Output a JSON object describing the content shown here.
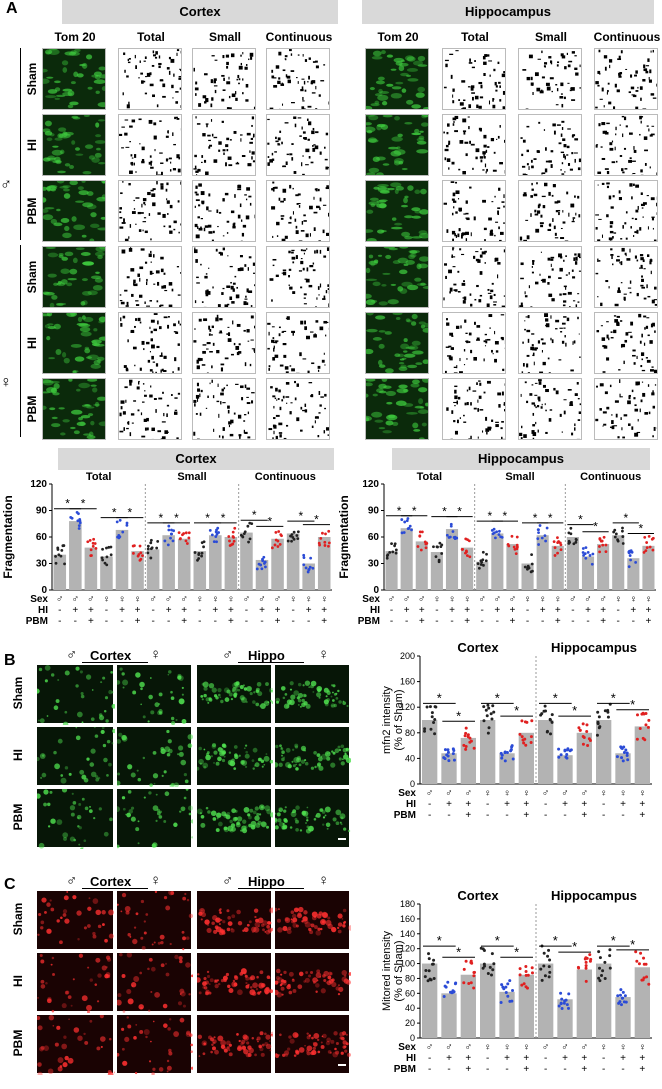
{
  "panelA": {
    "letter": "A",
    "cortex_header": "Cortex",
    "hippo_header": "Hippocampus",
    "columns": [
      "Tom 20",
      "Total",
      "Small",
      "Continuous"
    ],
    "rows": [
      "Sham",
      "HI",
      "PBM",
      "Sham",
      "HI",
      "PBM"
    ],
    "male_symbol": "♂",
    "female_symbol": "♀"
  },
  "panelA_charts": {
    "cortex_title": "Cortex",
    "hippo_title": "Hippocampus",
    "groups": [
      "Total",
      "Small",
      "Continuous"
    ],
    "ylabel": "Fragmentation",
    "yticks": [
      "0",
      "30",
      "60",
      "90",
      "120"
    ],
    "row_labels": [
      "Sex",
      "HI",
      "PBM"
    ],
    "sex_row": [
      "♂",
      "♂",
      "♂",
      "♀",
      "♀",
      "♀"
    ],
    "hi_row": [
      "-",
      "+",
      "+",
      "-",
      "+",
      "+"
    ],
    "pbm_row": [
      "-",
      "-",
      "+",
      "-",
      "-",
      "+"
    ],
    "star": "*"
  },
  "panelB": {
    "letter": "B",
    "cortex_label": "Cortex",
    "hippo_label": "Hippo",
    "rows": [
      "Sham",
      "HI",
      "PBM"
    ],
    "chart_titles": [
      "Cortex",
      "Hippocampus"
    ],
    "ylabel": "mfn2 intensity",
    "ylabel2": "(% of Sham)",
    "yticks": [
      "0",
      "40",
      "80",
      "120",
      "160",
      "200"
    ]
  },
  "panelC": {
    "letter": "C",
    "cortex_label": "Cortex",
    "hippo_label": "Hippo",
    "rows": [
      "Sham",
      "HI",
      "PBM"
    ],
    "chart_titles": [
      "Cortex",
      "Hippocampus"
    ],
    "ylabel": "Mitored intensity",
    "ylabel2": "(% of Sham)",
    "yticks": [
      "0",
      "20",
      "40",
      "60",
      "80",
      "100",
      "120",
      "140",
      "160",
      "180"
    ]
  },
  "colors": {
    "sham": "#222222",
    "hi": "#2b4bd6",
    "pbm": "#e02020",
    "bar": "#b3b3b3",
    "header": "#d9d9d9"
  },
  "chart_data": [
    {
      "type": "bar",
      "title": "Cortex",
      "ylabel": "Fragmentation",
      "ylim": [
        0,
        120
      ],
      "groups": [
        "Total",
        "Small",
        "Continuous"
      ],
      "categories": [
        "♂ Sham",
        "♂ HI",
        "♂ HI+PBM",
        "♀ Sham",
        "♀ HI",
        "♀ HI+PBM"
      ],
      "series": [
        {
          "name": "Total",
          "values": [
            40,
            78,
            48,
            38,
            68,
            44
          ]
        },
        {
          "name": "Small",
          "values": [
            46,
            62,
            58,
            44,
            62,
            60
          ]
        },
        {
          "name": "Continuous",
          "values": [
            65,
            34,
            58,
            64,
            30,
            60
          ]
        }
      ]
    },
    {
      "type": "bar",
      "title": "Hippocampus",
      "ylabel": "Fragmentation",
      "ylim": [
        0,
        120
      ],
      "groups": [
        "Total",
        "Small",
        "Continuous"
      ],
      "categories": [
        "♂ Sham",
        "♂ HI",
        "♂ HI+PBM",
        "♀ Sham",
        "♀ HI",
        "♀ HI+PBM"
      ],
      "series": [
        {
          "name": "Total",
          "values": [
            44,
            70,
            55,
            43,
            69,
            48
          ]
        },
        {
          "name": "Small",
          "values": [
            32,
            64,
            52,
            30,
            62,
            50
          ]
        },
        {
          "name": "Continuous",
          "values": [
            60,
            38,
            52,
            62,
            36,
            50
          ]
        }
      ]
    },
    {
      "type": "bar",
      "title": "mfn2 intensity (% of Sham)",
      "ylim": [
        0,
        200
      ],
      "groups": [
        "Cortex",
        "Hippocampus"
      ],
      "categories": [
        "♂ Sham",
        "♂ HI",
        "♂ HI+PBM",
        "♀ Sham",
        "♀ HI",
        "♀ HI+PBM"
      ],
      "series": [
        {
          "name": "Cortex",
          "values": [
            100,
            48,
            72,
            100,
            48,
            80
          ]
        },
        {
          "name": "Hippocampus",
          "values": [
            100,
            45,
            80,
            100,
            48,
            90
          ]
        }
      ]
    },
    {
      "type": "bar",
      "title": "Mitored intensity (% of Sham)",
      "ylim": [
        0,
        180
      ],
      "groups": [
        "Cortex",
        "Hippocampus"
      ],
      "categories": [
        "♂ Sham",
        "♂ HI",
        "♂ HI+PBM",
        "♀ Sham",
        "♀ HI",
        "♀ HI+PBM"
      ],
      "series": [
        {
          "name": "Cortex",
          "values": [
            100,
            60,
            85,
            100,
            62,
            85
          ]
        },
        {
          "name": "Hippocampus",
          "values": [
            100,
            52,
            92,
            100,
            55,
            95
          ]
        }
      ]
    }
  ]
}
